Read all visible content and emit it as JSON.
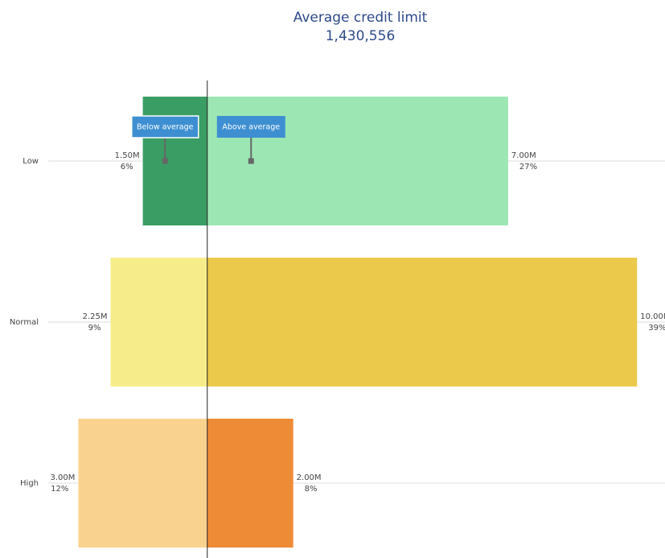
{
  "chart_data": {
    "type": "diverging-bar",
    "title": "Average credit limit",
    "subtitle": "1,430,556",
    "categories": [
      "Low",
      "Normal",
      "High"
    ],
    "xlim": [
      -3.7,
      10.65
    ],
    "series": [
      {
        "name": "Below average",
        "values": [
          1.5,
          2.25,
          3.0
        ],
        "value_labels": [
          "1.50M",
          "2.25M",
          "3.00M"
        ],
        "shares": [
          6,
          9,
          12
        ],
        "share_labels": [
          "6%",
          "9%",
          "12%"
        ],
        "colors": [
          "#3a9e64",
          "#f7ec8a",
          "#fad290"
        ]
      },
      {
        "name": "Above average",
        "values": [
          7.0,
          10.0,
          2.0
        ],
        "value_labels": [
          "7.00M",
          "10.00M",
          "2.00M"
        ],
        "shares": [
          27,
          39,
          8
        ],
        "share_labels": [
          "27%",
          "39%",
          "8%"
        ],
        "colors": [
          "#9ce6b4",
          "#ebc94b",
          "#ee8b37"
        ]
      }
    ]
  }
}
